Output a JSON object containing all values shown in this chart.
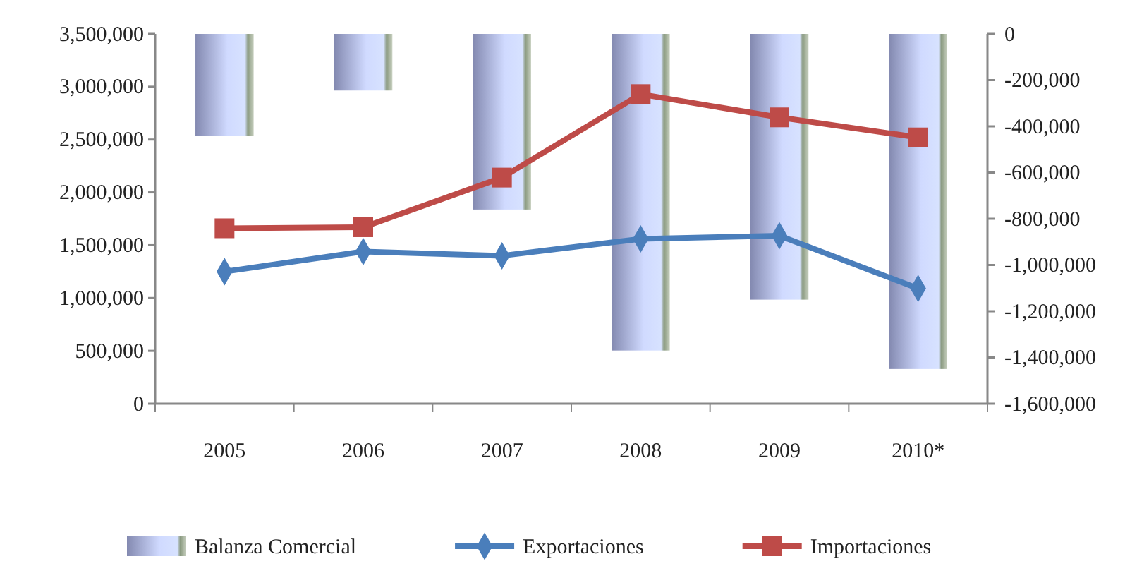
{
  "chart_data": {
    "type": "line",
    "categories": [
      "2005",
      "2006",
      "2007",
      "2008",
      "2009",
      "2010*"
    ],
    "series": [
      {
        "name": "Balanza Comercial",
        "type": "bar",
        "axis": "y2",
        "color": "#b4bdf2",
        "values": [
          -440000,
          -245000,
          -760000,
          -1370000,
          -1150000,
          -1450000
        ]
      },
      {
        "name": "Exportaciones",
        "color": "#4a7ebb",
        "marker": "diamond",
        "values": [
          1250000,
          1440000,
          1400000,
          1560000,
          1590000,
          1090000
        ]
      },
      {
        "name": "Importaciones",
        "color": "#be4b48",
        "marker": "square",
        "values": [
          1660000,
          1670000,
          2140000,
          2930000,
          2710000,
          2520000
        ]
      }
    ],
    "ylim": [
      0,
      3500000
    ],
    "yticks": [
      {
        "value": 0,
        "label": "0"
      },
      {
        "value": 500000,
        "label": "500,000"
      },
      {
        "value": 1000000,
        "label": "1,000,000"
      },
      {
        "value": 1500000,
        "label": "1,500,000"
      },
      {
        "value": 2000000,
        "label": "2,000,000"
      },
      {
        "value": 2500000,
        "label": "2,500,000"
      },
      {
        "value": 3000000,
        "label": "3,000,000"
      },
      {
        "value": 3500000,
        "label": "3,500,000"
      }
    ],
    "y2lim": [
      -1600000,
      0
    ],
    "y2ticks": [
      {
        "value": 0,
        "label": "0"
      },
      {
        "value": -200000,
        "label": "-200,000"
      },
      {
        "value": -400000,
        "label": "-400,000"
      },
      {
        "value": -600000,
        "label": "-600,000"
      },
      {
        "value": -800000,
        "label": "-800,000"
      },
      {
        "value": -1000000,
        "label": "-1,000,000"
      },
      {
        "value": -1200000,
        "label": "-1,200,000"
      },
      {
        "value": -1400000,
        "label": "-1,400,000"
      },
      {
        "value": -1600000,
        "label": "-1,600,000"
      }
    ],
    "grid": false,
    "legend": "bottom"
  }
}
